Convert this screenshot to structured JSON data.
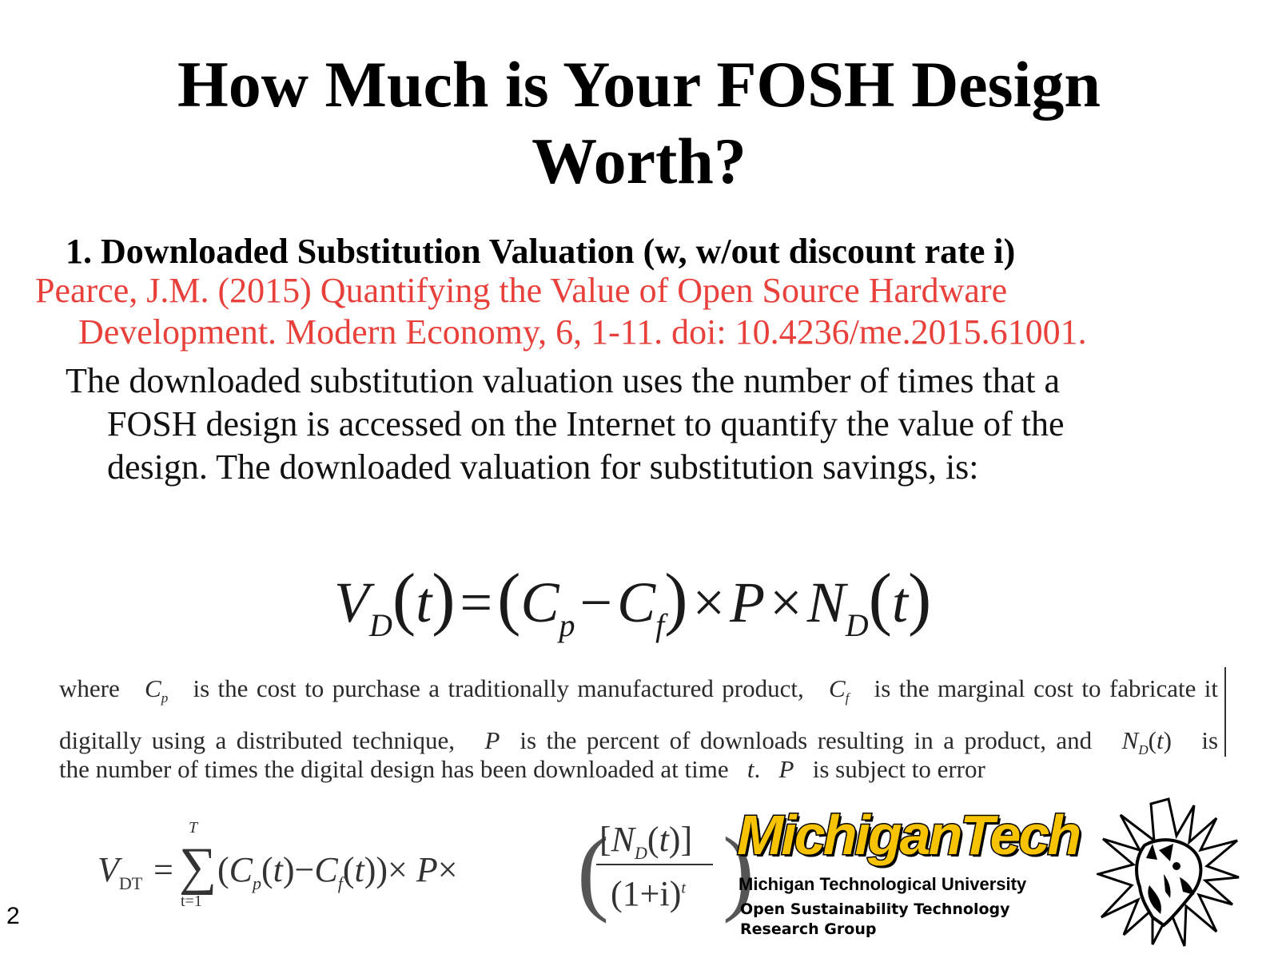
{
  "slide": {
    "title_line1": "How Much is Your FOSH Design",
    "title_line2": "Worth?",
    "heading": "1. Downloaded Substitution Valuation (w, w/out discount rate i)",
    "citation_line1": "Pearce, J.M. (2015) Quantifying the Value of Open Source Hardware",
    "citation_line2": "Development. Modern Economy, 6, 1-11. doi: 10.4236/me.2015.61001.",
    "body_line1": "The downloaded substitution valuation uses the number of times that a",
    "body_line2": "FOSH design is accessed on the Internet to quantify the value of the",
    "body_line3": "design. The downloaded valuation for substitution savings, is:",
    "page_number": "2",
    "accent_color": "#e8413c"
  },
  "equation1": {
    "lhs": "V",
    "lhs_sub": "D",
    "var_t": "t",
    "c": "C",
    "c_p_sub": "p",
    "c_f_sub": "f",
    "p": "P",
    "n": "N",
    "n_sub": "D"
  },
  "where_text": {
    "w1": "where",
    "t1": "is the cost to purchase a traditionally manufactured product,",
    "t2": "is the marginal cost to fabricate it",
    "t3": "digitally using a distributed technique,",
    "t4": "is the percent of downloads resulting in a product, and",
    "t5": "is",
    "t6": "the number of times the digital design has been downloaded at time",
    "t7": "is subject to error"
  },
  "equation2": {
    "lhs": "V",
    "lhs_sub": "DT",
    "sum_top": "T",
    "sum_bottom": "t=1",
    "denominator": "(1+i)",
    "den_exp": "t"
  },
  "branding": {
    "logo_text": "MichiganTech",
    "university": "Michigan Technological University",
    "group_line1": "Open Sustainability Technology",
    "group_line2": "Research Group",
    "logo_color": "#f7c200"
  }
}
